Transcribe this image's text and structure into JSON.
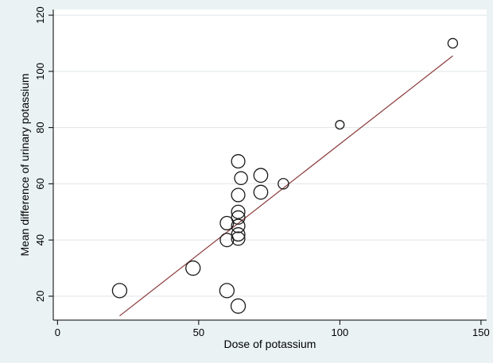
{
  "chart_data": {
    "type": "scatter",
    "title": "",
    "xlabel": "Dose of potassium",
    "ylabel": "Mean difference of urinary potassium",
    "xlim": [
      -1.5,
      152
    ],
    "ylim": [
      11.5,
      122
    ],
    "x_ticks": [
      0,
      50,
      100,
      150
    ],
    "y_ticks": [
      20,
      40,
      60,
      80,
      100,
      120
    ],
    "grid": true,
    "legend": "none",
    "marker": "hollow circle, size proportional to study weight",
    "colors": {
      "outer_background": "#eaf2f3",
      "plot_background": "#ffffff",
      "grid": "#dfe5e8",
      "marker": "#1a1a1a",
      "fit_line": "#8b3a3a"
    },
    "points": [
      {
        "x": 22,
        "y": 22,
        "weight": 1.0
      },
      {
        "x": 48,
        "y": 30,
        "weight": 1.0
      },
      {
        "x": 60,
        "y": 22,
        "weight": 1.0
      },
      {
        "x": 60,
        "y": 40,
        "weight": 0.9
      },
      {
        "x": 60,
        "y": 46,
        "weight": 0.9
      },
      {
        "x": 64,
        "y": 16.5,
        "weight": 1.0
      },
      {
        "x": 64,
        "y": 40.5,
        "weight": 0.9
      },
      {
        "x": 64,
        "y": 42,
        "weight": 0.9
      },
      {
        "x": 64,
        "y": 45,
        "weight": 0.9
      },
      {
        "x": 64,
        "y": 48,
        "weight": 0.9
      },
      {
        "x": 64,
        "y": 50,
        "weight": 0.9
      },
      {
        "x": 64,
        "y": 56,
        "weight": 0.9
      },
      {
        "x": 64,
        "y": 68,
        "weight": 0.9
      },
      {
        "x": 65,
        "y": 62,
        "weight": 0.85
      },
      {
        "x": 72,
        "y": 57,
        "weight": 0.95
      },
      {
        "x": 72,
        "y": 63,
        "weight": 0.95
      },
      {
        "x": 80,
        "y": 60,
        "weight": 0.6
      },
      {
        "x": 100,
        "y": 81,
        "weight": 0.4
      },
      {
        "x": 140,
        "y": 110,
        "weight": 0.5
      }
    ],
    "fit_line": {
      "x": [
        22,
        140
      ],
      "y": [
        13,
        105.5
      ]
    }
  }
}
